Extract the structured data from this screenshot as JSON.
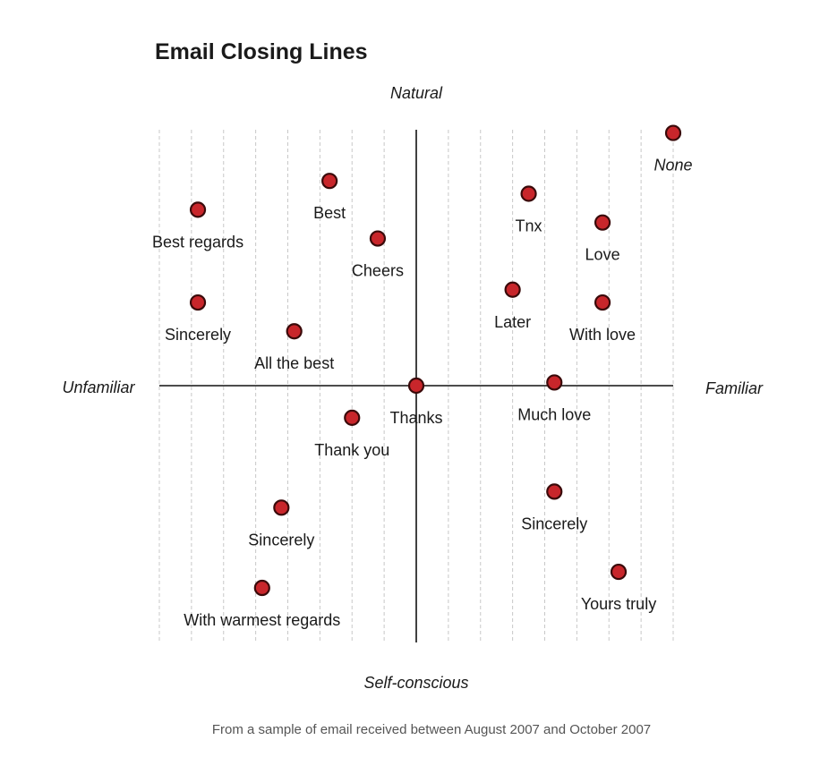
{
  "chart_data": {
    "type": "scatter",
    "title": "Email Closing Lines",
    "footnote": "From a sample of email received between August 2007 and October 2007",
    "axes": {
      "x_negative_label": "Unfamiliar",
      "x_positive_label": "Familiar",
      "y_positive_label": "Natural",
      "y_negative_label": "Self-conscious"
    },
    "xlim": [
      -8,
      8
    ],
    "ylim": [
      -8,
      8
    ],
    "grid": "vertical dashed lines",
    "points": [
      {
        "label": "None",
        "x": 8.0,
        "y": 7.9,
        "italic": true
      },
      {
        "label": "Best",
        "x": -2.7,
        "y": 6.4
      },
      {
        "label": "Tnx",
        "x": 3.5,
        "y": 6.0
      },
      {
        "label": "Best regards",
        "x": -6.8,
        "y": 5.5
      },
      {
        "label": "Love",
        "x": 5.8,
        "y": 5.1
      },
      {
        "label": "Cheers",
        "x": -1.2,
        "y": 4.6
      },
      {
        "label": "Later",
        "x": 3.0,
        "y": 3.0
      },
      {
        "label": "Sincerely",
        "x": -6.8,
        "y": 2.6
      },
      {
        "label": "With love",
        "x": 5.8,
        "y": 2.6
      },
      {
        "label": "All the best",
        "x": -3.8,
        "y": 1.7
      },
      {
        "label": "Thanks",
        "x": 0.0,
        "y": 0.0
      },
      {
        "label": "Much love",
        "x": 4.3,
        "y": 0.1
      },
      {
        "label": "Thank you",
        "x": -2.0,
        "y": -1.0
      },
      {
        "label": "Sincerely",
        "x": -4.2,
        "y": -3.8
      },
      {
        "label": "Sincerely",
        "x": 4.3,
        "y": -3.3
      },
      {
        "label": "Yours truly",
        "x": 6.3,
        "y": -5.8
      },
      {
        "label": "With warmest regards",
        "x": -4.8,
        "y": -6.3
      }
    ]
  }
}
